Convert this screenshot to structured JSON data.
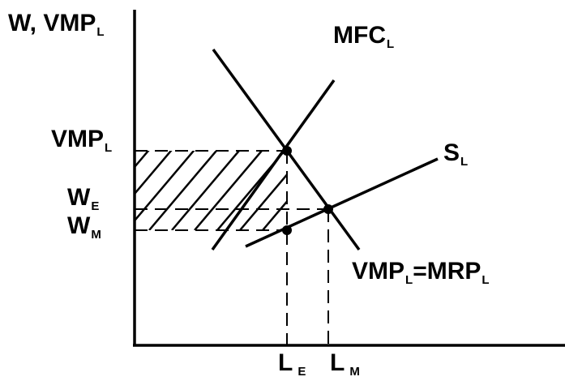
{
  "axes": {
    "y_label_main": "W, VMP",
    "y_label_sub": "L"
  },
  "curves": {
    "mfc_main": "MFC",
    "mfc_sub": "L",
    "supply_main": "S",
    "supply_sub": "L",
    "demand_a_main": "VMP",
    "demand_a_sub": "L",
    "demand_mid": "=MRP",
    "demand_b_sub": "L"
  },
  "y_ticks": {
    "vmp_main": "VMP",
    "vmp_sub": "L",
    "we_main": "W",
    "we_sub": "E",
    "wm_main": "W",
    "wm_sub": "M"
  },
  "x_ticks": {
    "le_main": "L",
    "le_sub": "E",
    "lm_main": "L",
    "lm_sub": "M"
  },
  "colors": {
    "ink": "#000000",
    "background": "#ffffff"
  }
}
